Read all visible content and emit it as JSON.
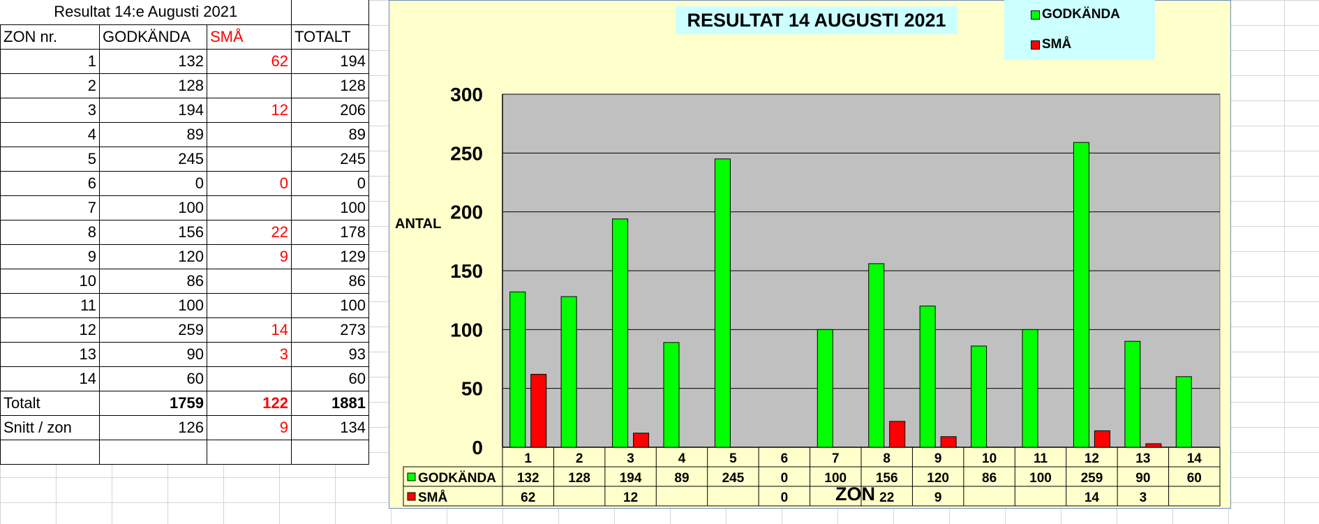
{
  "table": {
    "title": "Resultat 14:e Augusti 2021",
    "headers": [
      "ZON nr.",
      "GODKÄNDA",
      "SMÅ",
      "TOTALT"
    ],
    "rows": [
      [
        "1",
        "132",
        "62",
        "194"
      ],
      [
        "2",
        "128",
        "",
        "128"
      ],
      [
        "3",
        "194",
        "12",
        "206"
      ],
      [
        "4",
        "89",
        "",
        "89"
      ],
      [
        "5",
        "245",
        "",
        "245"
      ],
      [
        "6",
        "0",
        "0",
        "0"
      ],
      [
        "7",
        "100",
        "",
        "100"
      ],
      [
        "8",
        "156",
        "22",
        "178"
      ],
      [
        "9",
        "120",
        "9",
        "129"
      ],
      [
        "10",
        "86",
        "",
        "86"
      ],
      [
        "11",
        "100",
        "",
        "100"
      ],
      [
        "12",
        "259",
        "14",
        "273"
      ],
      [
        "13",
        "90",
        "3",
        "93"
      ],
      [
        "14",
        "60",
        "",
        "60"
      ]
    ],
    "totals": [
      "Totalt",
      "1759",
      "122",
      "1881"
    ],
    "average": [
      "Snitt / zon",
      "126",
      "9",
      "134"
    ]
  },
  "chart_data": {
    "type": "bar",
    "title": "RESULTAT 14 AUGUSTI 2021",
    "xlabel": "ZON",
    "ylabel": "ANTAL",
    "categories": [
      "1",
      "2",
      "3",
      "4",
      "5",
      "6",
      "7",
      "8",
      "9",
      "10",
      "11",
      "12",
      "13",
      "14"
    ],
    "series": [
      {
        "name": "GODKÄNDA",
        "color": "#00ff00",
        "values": [
          132,
          128,
          194,
          89,
          245,
          0,
          100,
          156,
          120,
          86,
          100,
          259,
          90,
          60
        ],
        "labels": [
          "132",
          "128",
          "194",
          "89",
          "245",
          "0",
          "100",
          "156",
          "120",
          "86",
          "100",
          "259",
          "90",
          "60"
        ]
      },
      {
        "name": "SMÅ",
        "color": "#ff0000",
        "values": [
          62,
          null,
          12,
          null,
          null,
          0,
          null,
          22,
          9,
          null,
          null,
          14,
          3,
          null
        ],
        "labels": [
          "62",
          "",
          "12",
          "",
          "",
          "0",
          "",
          "22",
          "9",
          "",
          "",
          "14",
          "3",
          ""
        ]
      }
    ],
    "ylim": [
      0,
      300
    ],
    "yticks": [
      "0",
      "50",
      "100",
      "150",
      "200",
      "250",
      "300"
    ],
    "grid": true,
    "legend": "top-right",
    "data_table": true,
    "plot_background": "#c0c0c0",
    "chart_background": "#ffffcc"
  }
}
